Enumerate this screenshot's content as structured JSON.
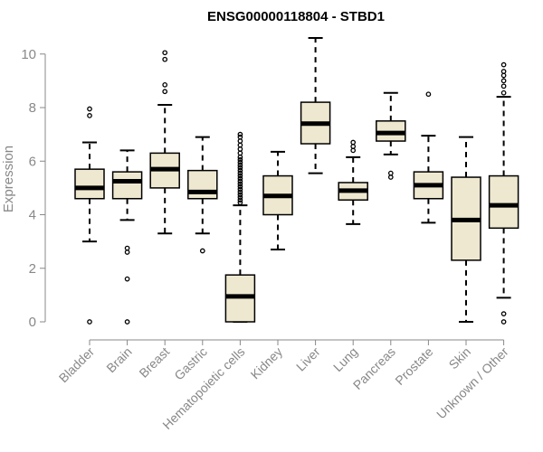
{
  "chart_data": {
    "type": "boxplot",
    "title": "ENSG00000118804 - STBD1",
    "xlabel": "",
    "ylabel": "Expression",
    "ylim": [
      0,
      10.6
    ],
    "yticks": [
      0,
      2,
      4,
      6,
      8,
      10
    ],
    "grid": false,
    "box_fill": "#EEE8D0",
    "box_stroke": "#000000",
    "median_color": "#000000",
    "axis_color": "#888888",
    "categories": [
      "Bladder",
      "Brain",
      "Breast",
      "Gastric",
      "Hematopoietic cells",
      "Kidney",
      "Liver",
      "Lung",
      "Pancreas",
      "Prostate",
      "Skin",
      "Unknown / Other"
    ],
    "boxes": [
      {
        "category": "Bladder",
        "whisker_low": 3.0,
        "q1": 4.6,
        "median": 5.0,
        "q3": 5.7,
        "whisker_high": 6.7,
        "outliers": [
          0.0,
          7.7,
          7.95
        ]
      },
      {
        "category": "Brain",
        "whisker_low": 3.8,
        "q1": 4.6,
        "median": 5.25,
        "q3": 5.6,
        "whisker_high": 6.4,
        "outliers": [
          0.0,
          1.6,
          2.6,
          2.75
        ]
      },
      {
        "category": "Breast",
        "whisker_low": 3.3,
        "q1": 5.0,
        "median": 5.7,
        "q3": 6.3,
        "whisker_high": 8.1,
        "outliers": [
          8.6,
          8.85,
          9.8,
          10.05
        ]
      },
      {
        "category": "Gastric",
        "whisker_low": 3.3,
        "q1": 4.6,
        "median": 4.85,
        "q3": 5.65,
        "whisker_high": 6.9,
        "outliers": [
          2.65
        ]
      },
      {
        "category": "Hematopoietic cells",
        "whisker_low": 0.0,
        "q1": 0.0,
        "median": 0.95,
        "q3": 1.75,
        "whisker_high": 4.35,
        "outliers": [
          4.45,
          4.55,
          4.65,
          4.75,
          4.85,
          4.95,
          5.05,
          5.15,
          5.25,
          5.35,
          5.45,
          5.55,
          5.65,
          5.75,
          5.85,
          5.95,
          6.05,
          6.15,
          6.3,
          6.45,
          6.6,
          6.75,
          6.9,
          7.0
        ]
      },
      {
        "category": "Kidney",
        "whisker_low": 2.7,
        "q1": 4.0,
        "median": 4.7,
        "q3": 5.45,
        "whisker_high": 6.35,
        "outliers": []
      },
      {
        "category": "Liver",
        "whisker_low": 5.55,
        "q1": 6.65,
        "median": 7.4,
        "q3": 8.2,
        "whisker_high": 10.6,
        "outliers": []
      },
      {
        "category": "Lung",
        "whisker_low": 3.65,
        "q1": 4.55,
        "median": 4.9,
        "q3": 5.2,
        "whisker_high": 6.15,
        "outliers": [
          6.4,
          6.55,
          6.7
        ]
      },
      {
        "category": "Pancreas",
        "whisker_low": 6.25,
        "q1": 6.75,
        "median": 7.05,
        "q3": 7.5,
        "whisker_high": 8.55,
        "outliers": [
          5.4,
          5.55
        ]
      },
      {
        "category": "Prostate",
        "whisker_low": 3.7,
        "q1": 4.6,
        "median": 5.1,
        "q3": 5.6,
        "whisker_high": 6.95,
        "outliers": [
          8.5
        ]
      },
      {
        "category": "Skin",
        "whisker_low": 0.0,
        "q1": 2.3,
        "median": 3.8,
        "q3": 5.4,
        "whisker_high": 6.9,
        "outliers": []
      },
      {
        "category": "Unknown / Other",
        "whisker_low": 0.9,
        "q1": 3.5,
        "median": 4.35,
        "q3": 5.45,
        "whisker_high": 8.4,
        "outliers": [
          0.0,
          0.3,
          8.55,
          8.8,
          9.0,
          9.2,
          9.35,
          9.6
        ]
      }
    ]
  }
}
